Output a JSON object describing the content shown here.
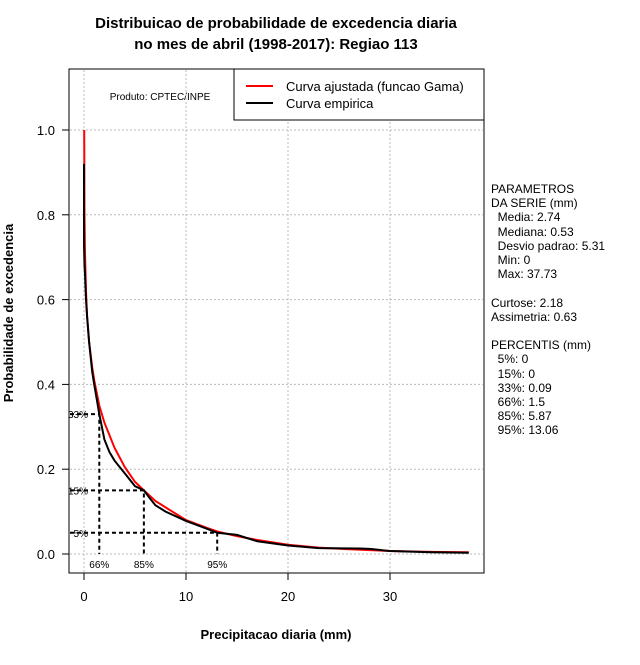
{
  "chart_data": {
    "type": "line",
    "title": [
      "Distribuicao de probabilidade de excedencia diaria",
      "no mes de abril (1998-2017): Regiao 113"
    ],
    "xlabel": "Precipitacao diaria (mm)",
    "ylabel": "Probabilidade de excedencia",
    "xlim": [
      -1.5,
      39.3
    ],
    "ylim": [
      -0.045,
      1.145
    ],
    "xticks": [
      0,
      10,
      20,
      30
    ],
    "yticks": [
      "0.0",
      "0.2",
      "0.4",
      "0.6",
      "0.8",
      "1.0"
    ],
    "grid": true,
    "credit": "Produto: CPTEC/INPE",
    "legend": {
      "position": "top-right",
      "entries": [
        "Curva ajustada (funcao Gama)",
        "Curva empirica"
      ]
    },
    "colors": {
      "fitted": "#ff0000",
      "empirical": "#000000"
    },
    "series": [
      {
        "name": "Curva ajustada (funcao Gama)",
        "x": [
          0.02,
          0.05,
          0.1,
          0.2,
          0.3,
          0.5,
          0.8,
          1.0,
          1.5,
          2,
          3,
          4,
          5,
          5.87,
          7,
          8,
          10,
          12,
          13.06,
          15,
          17,
          20,
          23,
          26,
          30,
          34,
          37.73
        ],
        "y": [
          1.0,
          0.8,
          0.71,
          0.62,
          0.56,
          0.5,
          0.44,
          0.41,
          0.35,
          0.31,
          0.25,
          0.205,
          0.17,
          0.15,
          0.125,
          0.11,
          0.08,
          0.062,
          0.053,
          0.042,
          0.033,
          0.022,
          0.015,
          0.011,
          0.007,
          0.005,
          0.004
        ]
      },
      {
        "name": "Curva empirica",
        "x": [
          0,
          0,
          0.05,
          0.1,
          0.2,
          0.3,
          0.5,
          0.8,
          1.0,
          1.5,
          2,
          2.5,
          3,
          4,
          5,
          5.87,
          6.5,
          7,
          8,
          10,
          12,
          13.06,
          15,
          17,
          20,
          23,
          27,
          28,
          30,
          34,
          37.73
        ],
        "y": [
          0.92,
          0.73,
          0.68,
          0.66,
          0.6,
          0.56,
          0.5,
          0.43,
          0.4,
          0.33,
          0.27,
          0.24,
          0.22,
          0.19,
          0.16,
          0.15,
          0.13,
          0.115,
          0.1,
          0.078,
          0.06,
          0.05,
          0.045,
          0.03,
          0.02,
          0.014,
          0.013,
          0.012,
          0.007,
          0.004,
          0.003
        ]
      }
    ],
    "percentile_markers": [
      {
        "label_y": "33%",
        "label_x": "66%",
        "x": 1.5,
        "y": 0.33
      },
      {
        "label_y": "15%",
        "label_x": "85%",
        "x": 5.87,
        "y": 0.15
      },
      {
        "label_y": "5%",
        "label_x": "95%",
        "x": 13.06,
        "y": 0.05
      }
    ]
  },
  "stats": [
    "PARAMETROS",
    "DA SERIE (mm)",
    "  Media: 2.74",
    "  Mediana: 0.53",
    "  Desvio padrao: 5.31",
    "  Min: 0",
    "  Max: 37.73",
    "",
    "Curtose: 2.18",
    "Assimetria: 0.63",
    "",
    "PERCENTIS (mm)",
    "  5%: 0",
    "  15%: 0",
    "  33%: 0.09",
    "  66%: 1.5",
    "  85%: 5.87",
    "  95%: 13.06"
  ]
}
